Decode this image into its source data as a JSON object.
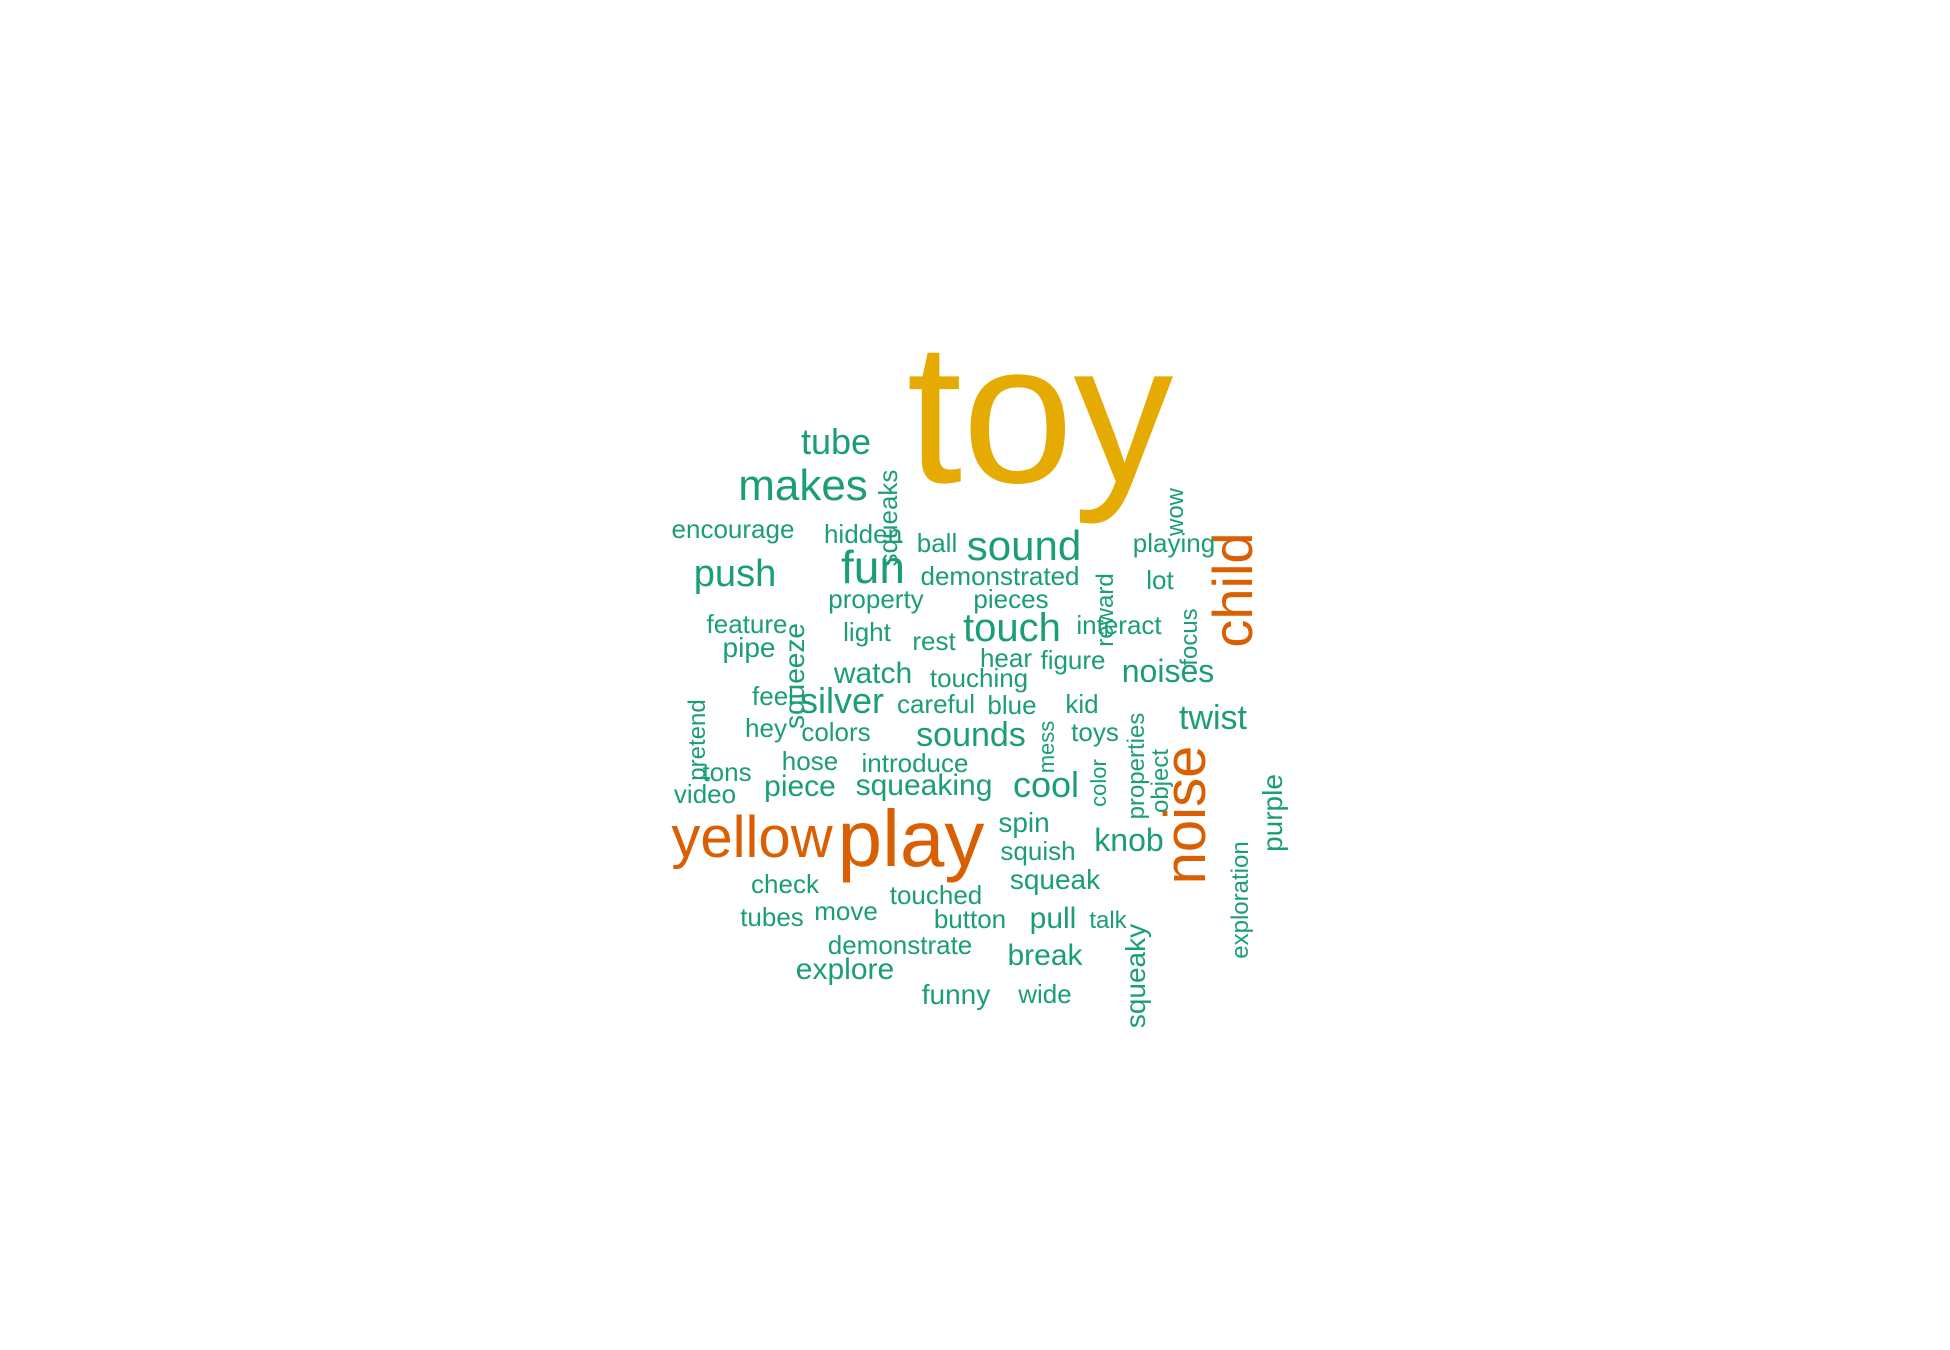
{
  "colors": {
    "top": "#E6AB02",
    "high": "#D95F02",
    "normal": "#1B9E77"
  },
  "words": [
    {
      "text": "toy",
      "tier": "top"
    },
    {
      "text": "play",
      "tier": "high"
    },
    {
      "text": "noise",
      "tier": "high"
    },
    {
      "text": "child",
      "tier": "high"
    },
    {
      "text": "yellow",
      "tier": "high"
    },
    {
      "text": "makes",
      "tier": "normal"
    },
    {
      "text": "tube",
      "tier": "normal"
    },
    {
      "text": "squeaks",
      "tier": "normal"
    },
    {
      "text": "wow",
      "tier": "normal"
    },
    {
      "text": "encourage",
      "tier": "normal"
    },
    {
      "text": "hidden",
      "tier": "normal"
    },
    {
      "text": "ball",
      "tier": "normal"
    },
    {
      "text": "sound",
      "tier": "normal"
    },
    {
      "text": "reward",
      "tier": "normal"
    },
    {
      "text": "playing",
      "tier": "normal"
    },
    {
      "text": "push",
      "tier": "normal"
    },
    {
      "text": "fun",
      "tier": "normal"
    },
    {
      "text": "demonstrated",
      "tier": "normal"
    },
    {
      "text": "lot",
      "tier": "normal"
    },
    {
      "text": "property",
      "tier": "normal"
    },
    {
      "text": "pieces",
      "tier": "normal"
    },
    {
      "text": "focus",
      "tier": "normal"
    },
    {
      "text": "feature",
      "tier": "normal"
    },
    {
      "text": "squeeze",
      "tier": "normal"
    },
    {
      "text": "light",
      "tier": "normal"
    },
    {
      "text": "touch",
      "tier": "normal"
    },
    {
      "text": "interact",
      "tier": "normal"
    },
    {
      "text": "pipe",
      "tier": "normal"
    },
    {
      "text": "rest",
      "tier": "normal"
    },
    {
      "text": "hear",
      "tier": "normal"
    },
    {
      "text": "figure",
      "tier": "normal"
    },
    {
      "text": "pretend",
      "tier": "normal"
    },
    {
      "text": "watch",
      "tier": "normal"
    },
    {
      "text": "touching",
      "tier": "normal"
    },
    {
      "text": "noises",
      "tier": "normal"
    },
    {
      "text": "feel",
      "tier": "normal"
    },
    {
      "text": "silver",
      "tier": "normal"
    },
    {
      "text": "careful",
      "tier": "normal"
    },
    {
      "text": "blue",
      "tier": "normal"
    },
    {
      "text": "mess",
      "tier": "normal"
    },
    {
      "text": "kid",
      "tier": "normal"
    },
    {
      "text": "properties",
      "tier": "normal"
    },
    {
      "text": "twist",
      "tier": "normal"
    },
    {
      "text": "hey",
      "tier": "normal"
    },
    {
      "text": "colors",
      "tier": "normal"
    },
    {
      "text": "sounds",
      "tier": "normal"
    },
    {
      "text": "toys",
      "tier": "normal"
    },
    {
      "text": "purple",
      "tier": "normal"
    },
    {
      "text": "hose",
      "tier": "normal"
    },
    {
      "text": "introduce",
      "tier": "normal"
    },
    {
      "text": "object",
      "tier": "normal"
    },
    {
      "text": "tons",
      "tier": "normal"
    },
    {
      "text": "color",
      "tier": "normal"
    },
    {
      "text": "exploration",
      "tier": "normal"
    },
    {
      "text": "video",
      "tier": "normal"
    },
    {
      "text": "piece",
      "tier": "normal"
    },
    {
      "text": "squeaking",
      "tier": "normal"
    },
    {
      "text": "cool",
      "tier": "normal"
    },
    {
      "text": "spin",
      "tier": "normal"
    },
    {
      "text": "knob",
      "tier": "normal"
    },
    {
      "text": "squish",
      "tier": "normal"
    },
    {
      "text": "check",
      "tier": "normal"
    },
    {
      "text": "squeak",
      "tier": "normal"
    },
    {
      "text": "squeaky",
      "tier": "normal"
    },
    {
      "text": "touched",
      "tier": "normal"
    },
    {
      "text": "move",
      "tier": "normal"
    },
    {
      "text": "tubes",
      "tier": "normal"
    },
    {
      "text": "button",
      "tier": "normal"
    },
    {
      "text": "pull",
      "tier": "normal"
    },
    {
      "text": "talk",
      "tier": "normal"
    },
    {
      "text": "demonstrate",
      "tier": "normal"
    },
    {
      "text": "explore",
      "tier": "normal"
    },
    {
      "text": "break",
      "tier": "normal"
    },
    {
      "text": "funny",
      "tier": "normal"
    },
    {
      "text": "wide",
      "tier": "normal"
    }
  ]
}
